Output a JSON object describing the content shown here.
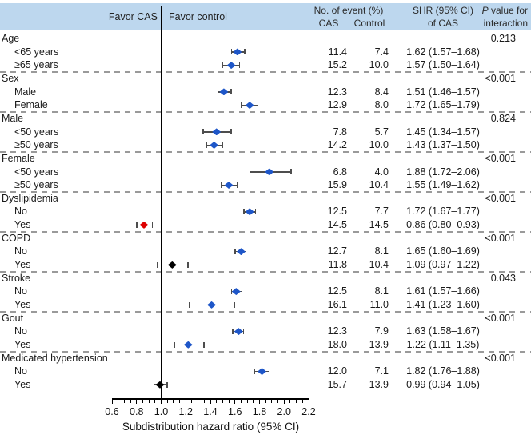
{
  "header": {
    "favor_left": "Favor CAS",
    "favor_right": "Favor control",
    "events_label": "No. of event (%)",
    "cas_label": "CAS",
    "control_label": "Control",
    "shr_label_line1": "SHR (95% CI)",
    "shr_label_line2": "of CAS",
    "p_italic": "P",
    "p_rest": " value for",
    "p_label_line2": "interaction"
  },
  "colors": {
    "band": "#BDD7EE",
    "blue": "#1E56C8",
    "red": "#DD0000",
    "black": "#000000",
    "ci": "#4d4d4d",
    "dash": "#9a9a9a"
  },
  "axis": {
    "min": 0.6,
    "max": 2.2,
    "tick_step": 0.05,
    "tick_labels": [
      "0.6",
      "0.8",
      "1.0",
      "1.2",
      "1.4",
      "1.6",
      "1.8",
      "2.0",
      "2.2"
    ],
    "reference_line": 1.0,
    "xlabel": "Subdistribution hazard ratio (95% CI)"
  },
  "chart_data": {
    "type": "forest",
    "xlabel": "Subdistribution hazard ratio (95% CI)",
    "xlim": [
      0.6,
      2.2
    ],
    "groups": [
      {
        "label": "Age",
        "p_value": "0.213",
        "rows": [
          {
            "label": "<65 years",
            "cas": "11.4",
            "control": "7.4",
            "shr": 1.62,
            "ci": [
              1.57,
              1.68
            ],
            "shr_text": "1.62 (1.57–1.68)",
            "color": "blue"
          },
          {
            "label": "≥65 years",
            "cas": "15.2",
            "control": "10.0",
            "shr": 1.57,
            "ci": [
              1.5,
              1.64
            ],
            "shr_text": "1.57 (1.50–1.64)",
            "color": "blue"
          }
        ]
      },
      {
        "label": "Sex",
        "p_value": "<0.001",
        "rows": [
          {
            "label": "Male",
            "cas": "12.3",
            "control": "8.4",
            "shr": 1.51,
            "ci": [
              1.46,
              1.57
            ],
            "shr_text": "1.51 (1.46–1.57)",
            "color": "blue"
          },
          {
            "label": "Female",
            "cas": "12.9",
            "control": "8.0",
            "shr": 1.72,
            "ci": [
              1.65,
              1.79
            ],
            "shr_text": "1.72 (1.65–1.79)",
            "color": "blue"
          }
        ]
      },
      {
        "label": "Male",
        "p_value": "0.824",
        "rows": [
          {
            "label": "<50 years",
            "cas": "7.8",
            "control": "5.7",
            "shr": 1.45,
            "ci": [
              1.34,
              1.57
            ],
            "shr_text": "1.45 (1.34–1.57)",
            "color": "blue"
          },
          {
            "label": "≥50 years",
            "cas": "14.2",
            "control": "10.0",
            "shr": 1.43,
            "ci": [
              1.37,
              1.5
            ],
            "shr_text": "1.43 (1.37–1.50)",
            "color": "blue"
          }
        ]
      },
      {
        "label": "Female",
        "p_value": "<0.001",
        "rows": [
          {
            "label": "<50 years",
            "cas": "6.8",
            "control": "4.0",
            "shr": 1.88,
            "ci": [
              1.72,
              2.06
            ],
            "shr_text": "1.88 (1.72–2.06)",
            "color": "blue"
          },
          {
            "label": "≥50 years",
            "cas": "15.9",
            "control": "10.4",
            "shr": 1.55,
            "ci": [
              1.49,
              1.62
            ],
            "shr_text": "1.55 (1.49–1.62)",
            "color": "blue"
          }
        ]
      },
      {
        "label": "Dyslipidemia",
        "p_value": "<0.001",
        "rows": [
          {
            "label": "No",
            "cas": "12.5",
            "control": "7.7",
            "shr": 1.72,
            "ci": [
              1.67,
              1.77
            ],
            "shr_text": "1.72 (1.67–1.77)",
            "color": "blue"
          },
          {
            "label": "Yes",
            "cas": "14.5",
            "control": "14.5",
            "shr": 0.86,
            "ci": [
              0.8,
              0.93
            ],
            "shr_text": "0.86 (0.80–0.93)",
            "color": "red"
          }
        ]
      },
      {
        "label": "COPD",
        "p_value": "<0.001",
        "rows": [
          {
            "label": "No",
            "cas": "12.7",
            "control": "8.1",
            "shr": 1.65,
            "ci": [
              1.6,
              1.69
            ],
            "shr_text": "1.65 (1.60–1.69)",
            "color": "blue"
          },
          {
            "label": "Yes",
            "cas": "11.8",
            "control": "10.4",
            "shr": 1.09,
            "ci": [
              0.97,
              1.22
            ],
            "shr_text": "1.09 (0.97–1.22)",
            "color": "black"
          }
        ]
      },
      {
        "label": "Stroke",
        "p_value": "0.043",
        "rows": [
          {
            "label": "No",
            "cas": "12.5",
            "control": "8.1",
            "shr": 1.61,
            "ci": [
              1.57,
              1.66
            ],
            "shr_text": "1.61 (1.57–1.66)",
            "color": "blue"
          },
          {
            "label": "Yes",
            "cas": "16.1",
            "control": "11.0",
            "shr": 1.41,
            "ci": [
              1.23,
              1.6
            ],
            "shr_text": "1.41 (1.23–1.60)",
            "color": "blue"
          }
        ]
      },
      {
        "label": "Gout",
        "p_value": "<0.001",
        "rows": [
          {
            "label": "No",
            "cas": "12.3",
            "control": "7.9",
            "shr": 1.63,
            "ci": [
              1.58,
              1.67
            ],
            "shr_text": "1.63 (1.58–1.67)",
            "color": "blue"
          },
          {
            "label": "Yes",
            "cas": "18.0",
            "control": "13.9",
            "shr": 1.22,
            "ci": [
              1.11,
              1.35
            ],
            "shr_text": "1.22 (1.11–1.35)",
            "color": "blue"
          }
        ]
      },
      {
        "label": "Medicated hypertension",
        "p_value": "<0.001",
        "rows": [
          {
            "label": "No",
            "cas": "12.0",
            "control": "7.1",
            "shr": 1.82,
            "ci": [
              1.76,
              1.88
            ],
            "shr_text": "1.82 (1.76–1.88)",
            "color": "blue"
          },
          {
            "label": "Yes",
            "cas": "15.7",
            "control": "13.9",
            "shr": 0.99,
            "ci": [
              0.94,
              1.05
            ],
            "shr_text": "0.99 (0.94–1.05)",
            "color": "black"
          }
        ]
      }
    ]
  }
}
